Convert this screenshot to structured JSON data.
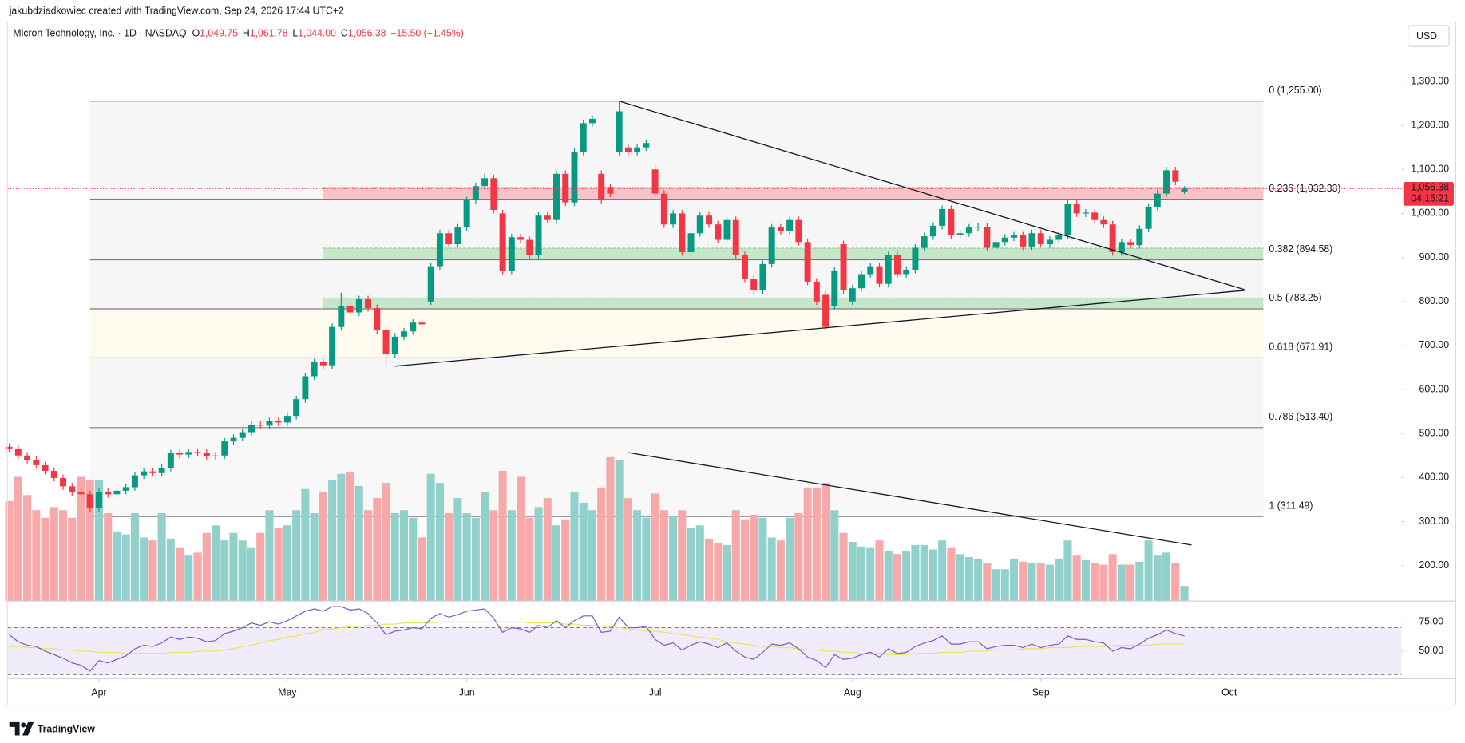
{
  "header": {
    "attribution": "jakubdziadkowiec created with TradingView.com, Sep 24, 2026 17:44 UTC+2",
    "currency": "USD",
    "brand": "TradingView"
  },
  "chart_data": {
    "type": "candlestick",
    "symbol": "Micron Technology, Inc. · 1D · NASDAQ",
    "ohlc_legend": [
      {
        "key": "O",
        "value": 1049.75,
        "label": "1,049.75"
      },
      {
        "key": "H",
        "value": 1061.78,
        "label": "1,061.78"
      },
      {
        "key": "L",
        "value": 1044.0,
        "label": "1,044.00"
      },
      {
        "key": "C",
        "value": 1056.38,
        "label": "1,056.38"
      }
    ],
    "change": "−15.50 (−1.45%)",
    "xlim": [
      -0.2,
      155.2
    ],
    "xticks": [
      {
        "value": 10,
        "label": "Apr"
      },
      {
        "value": 31,
        "label": "May"
      },
      {
        "value": 51,
        "label": "Jun"
      },
      {
        "value": 72,
        "label": "Jul"
      },
      {
        "value": 94,
        "label": "Aug"
      },
      {
        "value": 115,
        "label": "Sep"
      },
      {
        "value": 136,
        "label": "Oct"
      }
    ],
    "ylim": [
      119.4,
      1377.4
    ],
    "yticks": [
      {
        "value": 200,
        "label": "200.00"
      },
      {
        "value": 300,
        "label": "300.00"
      },
      {
        "value": 400,
        "label": "400.00"
      },
      {
        "value": 500,
        "label": "500.00"
      },
      {
        "value": 600,
        "label": "600.00"
      },
      {
        "value": 700,
        "label": "700.00"
      },
      {
        "value": 800,
        "label": "800.00"
      },
      {
        "value": 900,
        "label": "900.00"
      },
      {
        "value": 1000,
        "label": "1,000.00"
      },
      {
        "value": 1100,
        "label": "1,100.00"
      },
      {
        "value": 1200,
        "label": "1,200.00"
      },
      {
        "value": 1300,
        "label": "1,300.00"
      }
    ],
    "grid": false,
    "up_color": "#089981",
    "down_color": "#f23645",
    "volume_up_color": "#92d1cb",
    "volume_down_color": "#f6a9a8",
    "open": [
      470,
      466,
      450,
      440,
      428,
      415,
      399,
      380,
      367,
      362,
      330,
      368,
      362,
      370,
      378,
      405,
      414,
      410,
      422,
      455,
      452,
      458,
      456,
      448,
      450,
      482,
      490,
      503,
      520,
      518,
      528,
      525,
      540,
      578,
      630,
      662,
      655,
      742,
      790,
      775,
      805,
      785,
      735,
      680,
      720,
      732,
      752,
      800,
      880,
      955,
      930,
      968,
      1030,
      1062,
      1080,
      1000,
      870,
      946,
      940,
      905,
      995,
      985,
      1090,
      1025,
      1140,
      1205,
      1090,
      1060,
      1140,
      1150,
      1140,
      1150,
      1100,
      1045,
      975,
      1000,
      912,
      955,
      995,
      975,
      940,
      985,
      905,
      852,
      825,
      885,
      968,
      960,
      985,
      935,
      845,
      815,
      790,
      930,
      800,
      830,
      862,
      880,
      840,
      905,
      862,
      872,
      922,
      948,
      972,
      1010,
      950,
      955,
      968,
      970,
      922,
      935,
      945,
      950,
      925,
      955,
      930,
      940,
      950,
      1022,
      1000,
      1002,
      985,
      975,
      912,
      935,
      928,
      965,
      1015,
      1045,
      1098,
      1049.75
    ],
    "high": [
      478,
      474,
      458,
      448,
      436,
      423,
      407,
      388,
      375,
      370,
      376,
      376,
      378,
      386,
      413,
      422,
      422,
      430,
      463,
      463,
      466,
      466,
      464,
      458,
      490,
      498,
      511,
      528,
      528,
      536,
      536,
      548,
      586,
      638,
      670,
      670,
      750,
      820,
      798,
      813,
      813,
      793,
      743,
      728,
      740,
      760,
      760,
      888,
      963,
      963,
      976,
      1038,
      1070,
      1090,
      1088,
      1008,
      954,
      954,
      948,
      1003,
      1003,
      1098,
      1098,
      1148,
      1213,
      1223,
      1098,
      1068,
      1255,
      1158,
      1158,
      1168,
      1108,
      1053,
      1008,
      1008,
      963,
      1003,
      1003,
      983,
      993,
      993,
      913,
      860,
      893,
      976,
      976,
      993,
      993,
      943,
      853,
      823,
      878,
      938,
      838,
      870,
      888,
      888,
      913,
      913,
      880,
      930,
      956,
      980,
      1018,
      1018,
      963,
      976,
      978,
      978,
      943,
      953,
      958,
      958,
      963,
      963,
      948,
      958,
      1030,
      1030,
      1010,
      1010,
      993,
      983,
      943,
      943,
      973,
      1023,
      1053,
      1106,
      1106,
      1061.78
    ],
    "low": [
      458,
      442,
      432,
      420,
      407,
      391,
      372,
      359,
      354,
      322,
      322,
      354,
      354,
      362,
      370,
      397,
      402,
      402,
      414,
      444,
      444,
      448,
      440,
      440,
      442,
      474,
      482,
      495,
      510,
      510,
      517,
      517,
      532,
      570,
      622,
      647,
      647,
      734,
      767,
      767,
      777,
      727,
      652,
      672,
      712,
      724,
      740,
      792,
      872,
      922,
      922,
      960,
      1022,
      1054,
      1000,
      862,
      862,
      932,
      897,
      897,
      977,
      977,
      1017,
      1017,
      1132,
      1197,
      1022,
      1037,
      1132,
      1132,
      1132,
      1142,
      1037,
      967,
      967,
      904,
      904,
      947,
      967,
      932,
      932,
      897,
      844,
      817,
      817,
      877,
      952,
      952,
      927,
      837,
      792,
      735,
      782,
      817,
      792,
      822,
      854,
      832,
      832,
      854,
      854,
      864,
      914,
      940,
      964,
      942,
      942,
      947,
      960,
      914,
      914,
      927,
      937,
      917,
      917,
      922,
      922,
      932,
      942,
      992,
      992,
      977,
      967,
      904,
      904,
      920,
      920,
      957,
      1007,
      1037,
      1064,
      1044
    ],
    "close": [
      466,
      450,
      440,
      428,
      415,
      399,
      380,
      367,
      362,
      330,
      368,
      362,
      370,
      378,
      405,
      414,
      410,
      422,
      455,
      452,
      458,
      456,
      448,
      450,
      482,
      490,
      503,
      520,
      518,
      528,
      525,
      540,
      578,
      630,
      662,
      655,
      742,
      790,
      775,
      805,
      785,
      735,
      680,
      720,
      732,
      752,
      748,
      880,
      955,
      930,
      968,
      1030,
      1062,
      1080,
      1008,
      870,
      946,
      940,
      905,
      995,
      985,
      1090,
      1025,
      1140,
      1205,
      1215,
      1030,
      1045,
      1232,
      1140,
      1150,
      1160,
      1045,
      975,
      1000,
      912,
      955,
      995,
      975,
      940,
      985,
      905,
      852,
      825,
      885,
      968,
      960,
      985,
      935,
      845,
      800,
      742,
      870,
      825,
      830,
      862,
      880,
      840,
      905,
      862,
      872,
      922,
      948,
      972,
      1010,
      950,
      955,
      968,
      970,
      922,
      935,
      945,
      950,
      925,
      955,
      930,
      940,
      950,
      1022,
      1000,
      1002,
      985,
      975,
      912,
      935,
      928,
      965,
      1015,
      1045,
      1098,
      1072,
      1056.38
    ],
    "volume_lim": [
      0,
      100
    ],
    "volume": [
      66,
      82,
      70,
      60,
      55,
      62,
      60,
      55,
      82,
      80,
      80,
      58,
      46,
      44,
      58,
      42,
      40,
      58,
      41,
      35,
      30,
      32,
      45,
      50,
      40,
      45,
      40,
      35,
      45,
      60,
      48,
      50,
      60,
      74,
      58,
      72,
      80,
      84,
      85,
      76,
      60,
      68,
      78,
      58,
      60,
      55,
      42,
      84,
      78,
      58,
      68,
      58,
      55,
      72,
      60,
      86,
      60,
      82,
      55,
      62,
      68,
      50,
      54,
      72,
      65,
      60,
      75,
      95,
      93,
      68,
      60,
      55,
      71,
      60,
      56,
      60,
      48,
      50,
      41,
      38,
      37,
      60,
      54,
      57,
      55,
      42,
      40,
      55,
      58,
      75,
      75,
      78,
      60,
      45,
      39,
      36,
      35,
      40,
      33,
      31,
      33,
      37,
      37,
      34,
      40,
      35,
      31,
      29,
      28,
      25,
      21,
      21,
      28,
      26,
      25,
      25,
      24,
      28,
      40,
      30,
      27,
      25,
      24,
      31,
      24,
      24,
      26,
      40,
      30,
      32,
      25,
      10
    ],
    "fib_range": [
      9,
      139.8
    ],
    "fib_levels": [
      {
        "ratio": 0,
        "price": 1255,
        "label": "0 (1,255.00)",
        "color": "#787b86",
        "fill": "#f6f6f7"
      },
      {
        "ratio": 0.236,
        "price": 1032.33,
        "label": "0.236 (1,032.33)",
        "color": "#787b86",
        "fill": "#f6f6f7"
      },
      {
        "ratio": 0.382,
        "price": 894.58,
        "label": "0.382 (894.58)",
        "color": "#787b86",
        "fill": "#f6f6f7"
      },
      {
        "ratio": 0.5,
        "price": 783.25,
        "label": "0.5 (783.25)",
        "color": "#787b86",
        "fill": "#fffbee"
      },
      {
        "ratio": 0.618,
        "price": 671.91,
        "label": "0.618 (671.91)",
        "color": "#e8b923",
        "fill": "#f6f6f7"
      },
      {
        "ratio": 0.786,
        "price": 513.4,
        "label": "0.786 (513.40)",
        "color": "#787b86",
        "fill": "#f8f8f9"
      },
      {
        "ratio": 1,
        "price": 311.49,
        "label": "1 (311.49)",
        "color": "#787b86",
        "fill": "#ffffff"
      }
    ],
    "zones": [
      {
        "from": 1032.33,
        "to": 1059,
        "start": 35,
        "fill": "#f8c3c8",
        "edge": "#e88b95"
      },
      {
        "from": 894.58,
        "to": 921,
        "start": 35,
        "fill": "#c6e6c8",
        "edge": "#7cc383"
      },
      {
        "from": 783.25,
        "to": 808,
        "start": 35,
        "fill": "#c6e6c8",
        "edge": "#7cc383"
      }
    ],
    "trendlines": [
      {
        "pane": "price",
        "x": [
          68,
          137.7
        ],
        "y": [
          1255,
          827
        ]
      },
      {
        "pane": "price",
        "x": [
          43,
          137.7
        ],
        "y": [
          653,
          825
        ]
      },
      {
        "pane": "volume",
        "x": [
          69,
          131.8
        ],
        "y": [
          98,
          37
        ]
      }
    ],
    "last_price": {
      "value": 1056.38,
      "label": "1,056.38"
    },
    "countdown": "04:15:21",
    "rsi_ylim": [
      26.6,
      88.7
    ],
    "rsi_yticks": [
      {
        "value": 75,
        "label": "75.00"
      },
      {
        "value": 50,
        "label": "50.00"
      }
    ],
    "rsi_band": [
      30,
      70
    ],
    "rsi_color": "#7e57c2",
    "rsi_ma_color": "#e9e35b",
    "rsi_band_fill": "#f1ecfa",
    "rsi": [
      64,
      58,
      55,
      54,
      50,
      47,
      44,
      40,
      38,
      33,
      42,
      40,
      43,
      46,
      52,
      55,
      54,
      57,
      62,
      60,
      62,
      61,
      58,
      59,
      65,
      67,
      70,
      74,
      72,
      75,
      73,
      76,
      80,
      84,
      86,
      84,
      88,
      88,
      85,
      86,
      82,
      74,
      64,
      67,
      68,
      70,
      69,
      78,
      82,
      79,
      81,
      84,
      85,
      86,
      78,
      66,
      70,
      69,
      66,
      72,
      70,
      76,
      70,
      76,
      80,
      80,
      66,
      67,
      79,
      70,
      70,
      71,
      60,
      55,
      57,
      51,
      55,
      58,
      56,
      53,
      57,
      50,
      45,
      43,
      49,
      56,
      55,
      57,
      52,
      45,
      42,
      36,
      47,
      43,
      44,
      47,
      49,
      45,
      52,
      48,
      49,
      54,
      57,
      59,
      63,
      56,
      56,
      58,
      58,
      52,
      54,
      55,
      55,
      53,
      56,
      53,
      55,
      56,
      63,
      60,
      60,
      58,
      57,
      50,
      53,
      52,
      56,
      61,
      64,
      68,
      65,
      63
    ],
    "rsi_ma": [
      54,
      54,
      53,
      53,
      52,
      52,
      51,
      51,
      50,
      50,
      49,
      49,
      49,
      48,
      48,
      48,
      48,
      48,
      49,
      49,
      49,
      50,
      50,
      50,
      51,
      52,
      54,
      55,
      57,
      59,
      60,
      62,
      63,
      65,
      66,
      68,
      69,
      70,
      71,
      71,
      72,
      72,
      73,
      73,
      74,
      74,
      74,
      74,
      75,
      75,
      75,
      75,
      75,
      75,
      75,
      75,
      75,
      75,
      74,
      74,
      74,
      74,
      73,
      73,
      72,
      72,
      71,
      71,
      70,
      69,
      68,
      67,
      67,
      66,
      65,
      64,
      63,
      62,
      61,
      60,
      58,
      57,
      56,
      55,
      54,
      54,
      53,
      53,
      52,
      51,
      51,
      50,
      50,
      49,
      49,
      48,
      48,
      48,
      47,
      47,
      47,
      48,
      48,
      48,
      49,
      49,
      49,
      50,
      50,
      50,
      51,
      51,
      51,
      52,
      52,
      52,
      53,
      53,
      53,
      54,
      54,
      54,
      54,
      55,
      55,
      55,
      55,
      55,
      56,
      56,
      56,
      56
    ]
  }
}
